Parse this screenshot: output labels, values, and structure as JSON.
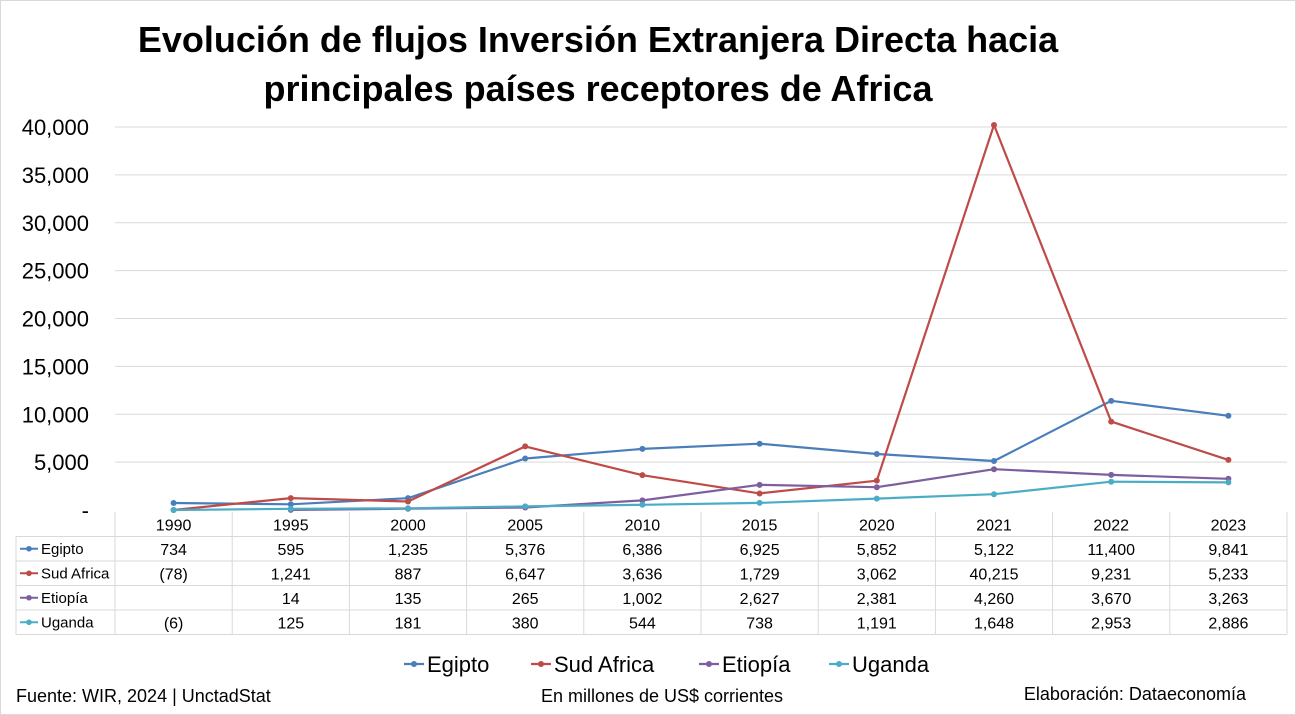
{
  "chart_data": {
    "type": "line",
    "title_line1": "Evolución de flujos Inversión Extranjera Directa hacia",
    "title_line2": "principales países receptores de Africa",
    "categories": [
      "1990",
      "1995",
      "2000",
      "2005",
      "2010",
      "2015",
      "2020",
      "2021",
      "2022",
      "2023"
    ],
    "ylim": [
      0,
      40000
    ],
    "yticks": [
      {
        "value": 0,
        "label": "-"
      },
      {
        "value": 5000,
        "label": "5,000"
      },
      {
        "value": 10000,
        "label": "10,000"
      },
      {
        "value": 15000,
        "label": "15,000"
      },
      {
        "value": 20000,
        "label": "20,000"
      },
      {
        "value": 25000,
        "label": "25,000"
      },
      {
        "value": 30000,
        "label": "30,000"
      },
      {
        "value": 35000,
        "label": "35,000"
      },
      {
        "value": 40000,
        "label": "40,000"
      }
    ],
    "grid": true,
    "legend_position": "bottom",
    "series": [
      {
        "name": "Egipto",
        "color": "#4a7ebb",
        "values": [
          734,
          595,
          1235,
          5376,
          6386,
          6925,
          5852,
          5122,
          11400,
          9841
        ],
        "labels": [
          "734",
          "595",
          "1,235",
          "5,376",
          "6,386",
          "6,925",
          "5,852",
          "5,122",
          "11,400",
          "9,841"
        ]
      },
      {
        "name": "Sud Africa",
        "color": "#be4b48",
        "values": [
          -78,
          1241,
          887,
          6647,
          3636,
          1729,
          3062,
          40215,
          9231,
          5233
        ],
        "labels": [
          "(78)",
          "1,241",
          "887",
          "6,647",
          "3,636",
          "1,729",
          "3,062",
          "40,215",
          "9,231",
          "5,233"
        ]
      },
      {
        "name": "Etiopía",
        "color": "#7d5fa0",
        "values": [
          null,
          14,
          135,
          265,
          1002,
          2627,
          2381,
          4260,
          3670,
          3263
        ],
        "labels": [
          "",
          "14",
          "135",
          "265",
          "1,002",
          "2,627",
          "2,381",
          "4,260",
          "3,670",
          "3,263"
        ]
      },
      {
        "name": "Uganda",
        "color": "#4bacc6",
        "values": [
          -6,
          125,
          181,
          380,
          544,
          738,
          1191,
          1648,
          2953,
          2886
        ],
        "labels": [
          "(6)",
          "125",
          "181",
          "380",
          "544",
          "738",
          "1,191",
          "1,648",
          "2,953",
          "2,886"
        ]
      }
    ]
  },
  "footer": {
    "source": "Fuente: WIR, 2024 | UnctadStat",
    "units": "En millones de US$ corrientes",
    "credit": "Elaboración: Dataeconomía"
  }
}
